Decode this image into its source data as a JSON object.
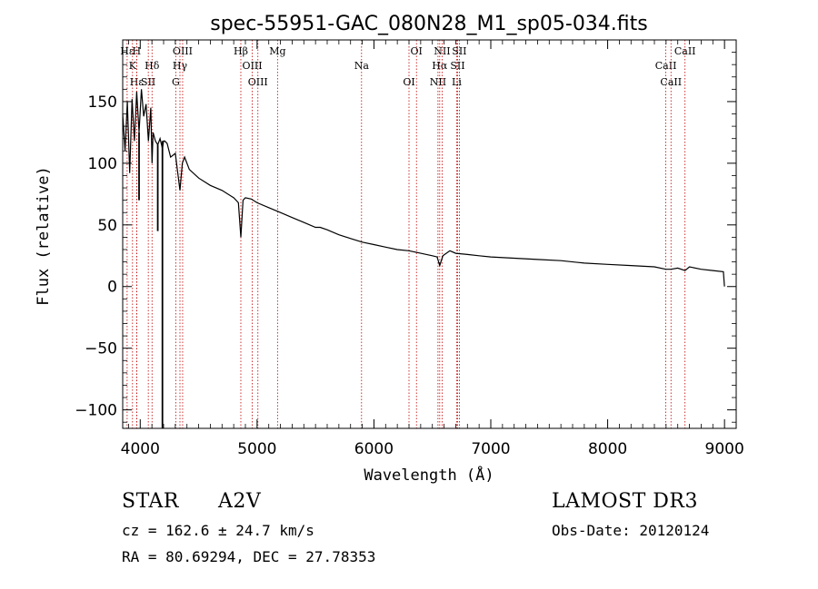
{
  "chart_data": {
    "type": "line",
    "title": "spec-55951-GAC_080N28_M1_sp05-034.fits",
    "xlabel": "Wavelength (Å)",
    "ylabel": "Flux (relative)",
    "xlim": [
      3850,
      9100
    ],
    "ylim": [
      -115,
      200
    ],
    "x_ticks": [
      4000,
      5000,
      6000,
      7000,
      8000,
      9000
    ],
    "y_ticks": [
      -100,
      -50,
      0,
      50,
      100,
      150
    ],
    "grid": false,
    "series": [
      {
        "name": "flux",
        "x": [
          3850,
          3870,
          3890,
          3910,
          3930,
          3950,
          3970,
          3990,
          4010,
          4030,
          4050,
          4070,
          4090,
          4101,
          4110,
          4130,
          4150,
          4170,
          4190,
          4200,
          4210,
          4230,
          4260,
          4300,
          4340,
          4360,
          4380,
          4420,
          4500,
          4600,
          4700,
          4800,
          4840,
          4861,
          4880,
          4900,
          4950,
          5000,
          5100,
          5200,
          5300,
          5400,
          5500,
          5520,
          5540,
          5600,
          5700,
          5800,
          5900,
          6000,
          6100,
          6200,
          6300,
          6400,
          6500,
          6540,
          6563,
          6590,
          6650,
          6700,
          6800,
          6900,
          7000,
          7200,
          7400,
          7600,
          7800,
          8000,
          8200,
          8400,
          8498,
          8542,
          8600,
          8662,
          8700,
          8800,
          8900,
          8990,
          9000
        ],
        "y": [
          140,
          110,
          150,
          92,
          152,
          118,
          158,
          125,
          160,
          138,
          148,
          118,
          145,
          100,
          125,
          118,
          115,
          120,
          112,
          118,
          118,
          116,
          105,
          108,
          78,
          100,
          105,
          95,
          88,
          82,
          78,
          72,
          68,
          40,
          70,
          72,
          71,
          68,
          64,
          60,
          56,
          52,
          48,
          48,
          48,
          46,
          42,
          39,
          36,
          34,
          32,
          30,
          29,
          27,
          25,
          24,
          17,
          25,
          29,
          27,
          26,
          25,
          24,
          23,
          22,
          21,
          19,
          18,
          17,
          16,
          14,
          14,
          15,
          13,
          16,
          14,
          13,
          12,
          0
        ]
      }
    ],
    "line_marks": [
      {
        "label": "Hε",
        "x": 3888
      },
      {
        "label": "K",
        "x": 3934
      },
      {
        "label": "Hε",
        "x": 3970
      },
      {
        "label": "H",
        "x": 3969
      },
      {
        "label": "Hδ",
        "x": 4101
      },
      {
        "label": "SII",
        "x": 4069
      },
      {
        "label": "OIII",
        "x": 4363
      },
      {
        "label": "Hγ",
        "x": 4340
      },
      {
        "label": "G",
        "x": 4304
      },
      {
        "label": "Hβ",
        "x": 4861
      },
      {
        "label": "OIII",
        "x": 4959
      },
      {
        "label": "OIII",
        "x": 5007
      },
      {
        "label": "Mg",
        "x": 5175
      },
      {
        "label": "Na",
        "x": 5894
      },
      {
        "label": "OI",
        "x": 6300
      },
      {
        "label": "OI",
        "x": 6364
      },
      {
        "label": "Hα",
        "x": 6563
      },
      {
        "label": "NII",
        "x": 6548
      },
      {
        "label": "NII",
        "x": 6583
      },
      {
        "label": "SII",
        "x": 6716
      },
      {
        "label": "Li",
        "x": 6708
      },
      {
        "label": "SII",
        "x": 6731
      },
      {
        "label": "CaII",
        "x": 8498
      },
      {
        "label": "CaII",
        "x": 8542
      },
      {
        "label": "CaII",
        "x": 8662
      }
    ]
  },
  "info": {
    "object_class": "STAR",
    "subclass": "A2V",
    "survey": "LAMOST DR3",
    "redshift": "cz = 162.6 ± 24.7 km/s",
    "obs_date": "Obs-Date: 20120124",
    "coords": "RA =  80.69294, DEC =  27.78353"
  }
}
